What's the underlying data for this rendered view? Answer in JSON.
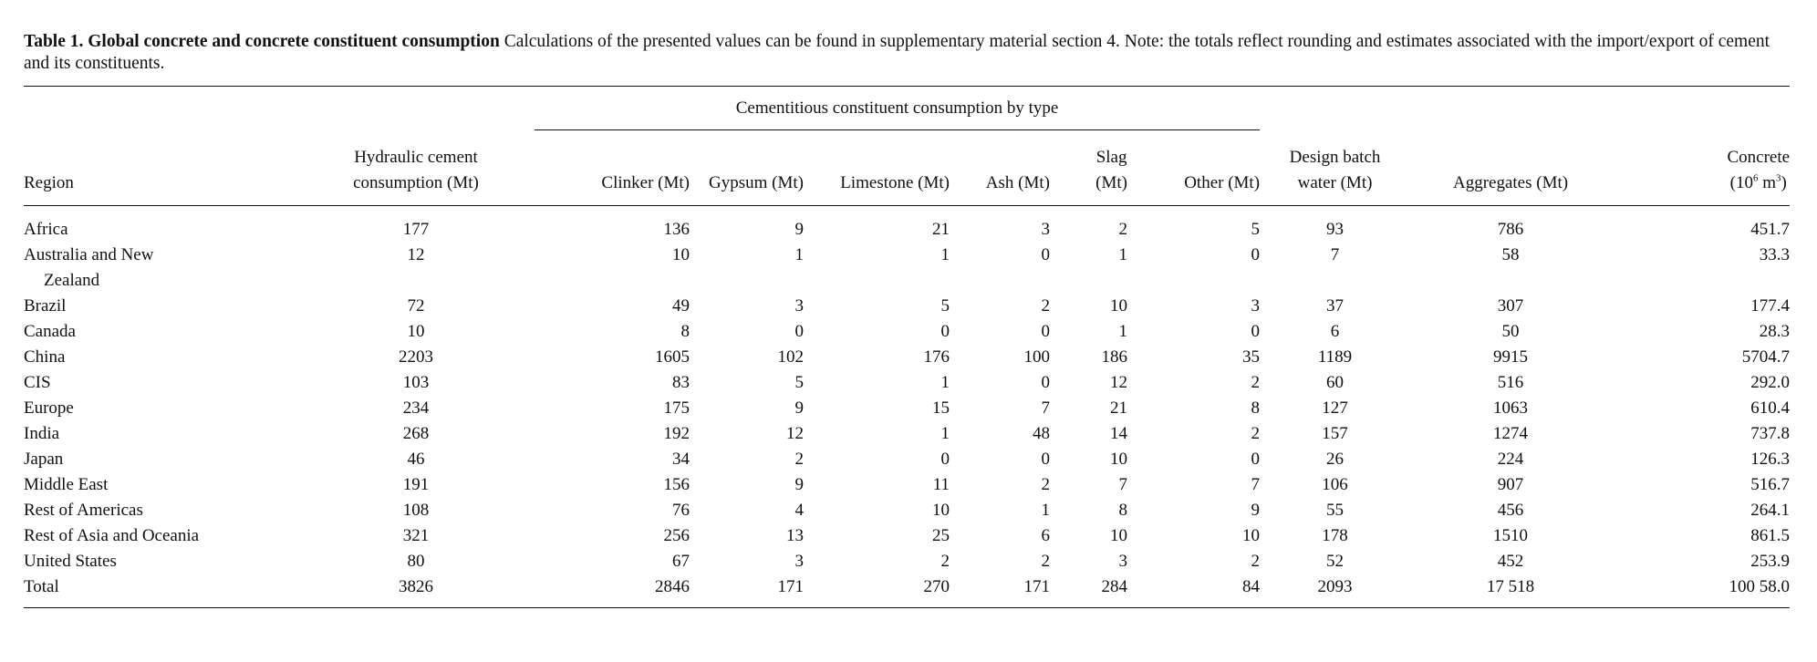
{
  "caption": {
    "label": "Table 1. Global concrete and concrete constituent consumption",
    "text": " Calculations of the presented values can be found in supplementary material section 4. Note: the totals reflect rounding and estimates associated with the import/export of cement and its constituents."
  },
  "table": {
    "group_header": "Cementitious constituent consumption by type",
    "columns": {
      "region": "Region",
      "cement_1": "Hydraulic cement",
      "cement_2": "consumption (Mt)",
      "clinker": "Clinker (Mt)",
      "gypsum": "Gypsum (Mt)",
      "limestone": "Limestone (Mt)",
      "ash": "Ash (Mt)",
      "slag_1": "Slag",
      "slag_2": "(Mt)",
      "other": "Other (Mt)",
      "water_1": "Design batch",
      "water_2": "water (Mt)",
      "aggregates": "Aggregates (Mt)",
      "concrete_1": "Concrete",
      "concrete_2a": "(10",
      "concrete_2b": "6",
      "concrete_2c": " m",
      "concrete_2d": "3",
      "concrete_2e": ")"
    },
    "rows": [
      {
        "region": "Africa",
        "cement": "177",
        "clinker": "136",
        "gypsum": "9",
        "limestone": "21",
        "ash": "3",
        "slag": "2",
        "other": "5",
        "water": "93",
        "aggregates": "786",
        "concrete": "451.7"
      },
      {
        "region": "Australia and New",
        "region_cont": "Zealand",
        "cement": "12",
        "clinker": "10",
        "gypsum": "1",
        "limestone": "1",
        "ash": "0",
        "slag": "1",
        "other": "0",
        "water": "7",
        "aggregates": "58",
        "concrete": "33.3"
      },
      {
        "region": "Brazil",
        "cement": "72",
        "clinker": "49",
        "gypsum": "3",
        "limestone": "5",
        "ash": "2",
        "slag": "10",
        "other": "3",
        "water": "37",
        "aggregates": "307",
        "concrete": "177.4"
      },
      {
        "region": "Canada",
        "cement": "10",
        "clinker": "8",
        "gypsum": "0",
        "limestone": "0",
        "ash": "0",
        "slag": "1",
        "other": "0",
        "water": "6",
        "aggregates": "50",
        "concrete": "28.3"
      },
      {
        "region": "China",
        "cement": "2203",
        "clinker": "1605",
        "gypsum": "102",
        "limestone": "176",
        "ash": "100",
        "slag": "186",
        "other": "35",
        "water": "1189",
        "aggregates": "9915",
        "concrete": "5704.7"
      },
      {
        "region": "CIS",
        "cement": "103",
        "clinker": "83",
        "gypsum": "5",
        "limestone": "1",
        "ash": "0",
        "slag": "12",
        "other": "2",
        "water": "60",
        "aggregates": "516",
        "concrete": "292.0"
      },
      {
        "region": "Europe",
        "cement": "234",
        "clinker": "175",
        "gypsum": "9",
        "limestone": "15",
        "ash": "7",
        "slag": "21",
        "other": "8",
        "water": "127",
        "aggregates": "1063",
        "concrete": "610.4"
      },
      {
        "region": "India",
        "cement": "268",
        "clinker": "192",
        "gypsum": "12",
        "limestone": "1",
        "ash": "48",
        "slag": "14",
        "other": "2",
        "water": "157",
        "aggregates": "1274",
        "concrete": "737.8"
      },
      {
        "region": "Japan",
        "cement": "46",
        "clinker": "34",
        "gypsum": "2",
        "limestone": "0",
        "ash": "0",
        "slag": "10",
        "other": "0",
        "water": "26",
        "aggregates": "224",
        "concrete": "126.3"
      },
      {
        "region": "Middle East",
        "cement": "191",
        "clinker": "156",
        "gypsum": "9",
        "limestone": "11",
        "ash": "2",
        "slag": "7",
        "other": "7",
        "water": "106",
        "aggregates": "907",
        "concrete": "516.7"
      },
      {
        "region": "Rest of Americas",
        "cement": "108",
        "clinker": "76",
        "gypsum": "4",
        "limestone": "10",
        "ash": "1",
        "slag": "8",
        "other": "9",
        "water": "55",
        "aggregates": "456",
        "concrete": "264.1"
      },
      {
        "region": "Rest of Asia and Oceania",
        "cement": "321",
        "clinker": "256",
        "gypsum": "13",
        "limestone": "25",
        "ash": "6",
        "slag": "10",
        "other": "10",
        "water": "178",
        "aggregates": "1510",
        "concrete": "861.5"
      },
      {
        "region": "United States",
        "cement": "80",
        "clinker": "67",
        "gypsum": "3",
        "limestone": "2",
        "ash": "2",
        "slag": "3",
        "other": "2",
        "water": "52",
        "aggregates": "452",
        "concrete": "253.9"
      },
      {
        "region": "Total",
        "cement": "3826",
        "clinker": "2846",
        "gypsum": "171",
        "limestone": "270",
        "ash": "171",
        "slag": "284",
        "other": "84",
        "water": "2093",
        "aggregates": "17 518",
        "concrete": "100 58.0"
      }
    ]
  }
}
